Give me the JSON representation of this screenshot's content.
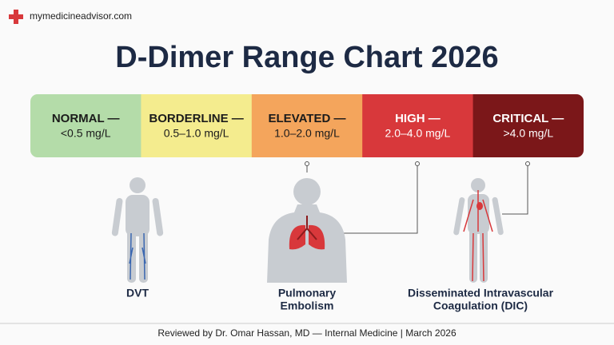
{
  "header": {
    "site": "mymedicineadvisor.com",
    "title": "D-Dimer Range Chart 2026"
  },
  "ranges": [
    {
      "label": "NORMAL —",
      "range": "<0.5 mg/L",
      "color": "#b4dca9",
      "text_color": "#1b1b1b"
    },
    {
      "label": "BORDERLINE —",
      "range": "0.5–1.0 mg/L",
      "color": "#f4ec8e",
      "text_color": "#1b1b1b"
    },
    {
      "label": "ELEVATED —",
      "range": "1.0–2.0 mg/L",
      "color": "#f4a55c",
      "text_color": "#1b1b1b"
    },
    {
      "label": "HIGH —",
      "range": "2.0–4.0 mg/L",
      "color": "#d8383b",
      "text_color": "#ffffff"
    },
    {
      "label": "CRITICAL —",
      "range": ">4.0 mg/L",
      "color": "#7b1719",
      "text_color": "#ffffff"
    }
  ],
  "conditions": [
    {
      "label_lines": [
        "DVT"
      ]
    },
    {
      "label_lines": [
        "Pulmonary",
        "Embolism"
      ]
    },
    {
      "label_lines": [
        "Disseminated Intravascular",
        "Coagulation (DIC)"
      ]
    }
  ],
  "footer": "Reviewed by Dr. Omar Hassan, MD — Internal Medicine | March 2026"
}
